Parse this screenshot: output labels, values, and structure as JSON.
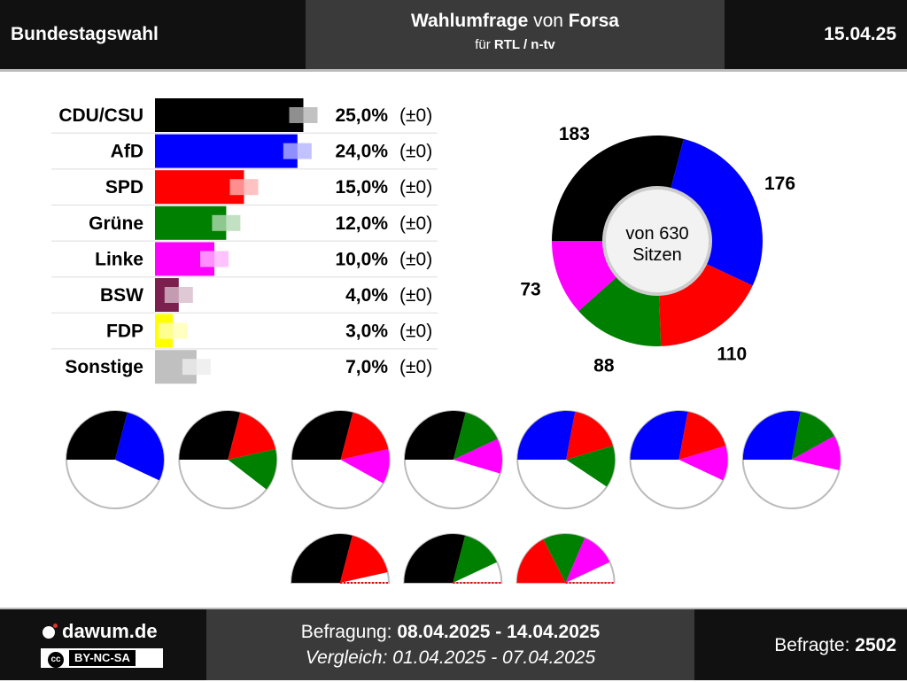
{
  "header": {
    "left": "Bundestagswahl",
    "title_bold1": "Wahlumfrage",
    "title_mid": " von ",
    "title_bold2": "Forsa",
    "sub_pre": "für ",
    "sub_bold": "RTL / n-tv",
    "date": "15.04.25"
  },
  "footer": {
    "logo": "dawum.de",
    "license": "BY-NC-SA",
    "cc": "cc",
    "survey_label": "Befragung: ",
    "survey_dates": "08.04.2025 - 14.04.2025",
    "compare_text": "Vergleich: 01.04.2025 - 07.04.2025",
    "respondents_label": "Befragte: ",
    "respondents_value": "2502"
  },
  "chart_data": [
    {
      "type": "bar",
      "orientation": "horizontal",
      "categories": [
        "CDU/CSU",
        "AfD",
        "SPD",
        "Grüne",
        "Linke",
        "BSW",
        "FDP",
        "Sonstige"
      ],
      "values": [
        25.0,
        24.0,
        15.0,
        12.0,
        10.0,
        4.0,
        3.0,
        7.0
      ],
      "value_labels": [
        "25,0%",
        "24,0%",
        "15,0%",
        "12,0%",
        "10,0%",
        "4,0%",
        "3,0%",
        "7,0%"
      ],
      "change_labels": [
        "(±0)",
        "(±0)",
        "(±0)",
        "(±0)",
        "(±0)",
        "(±0)",
        "(±0)",
        "(±0)"
      ],
      "previous_values": [
        25.0,
        24.0,
        15.0,
        12.0,
        10.0,
        4.0,
        3.0,
        7.0
      ],
      "colors": [
        "#000000",
        "#0000ff",
        "#ff0000",
        "#008000",
        "#ff00ff",
        "#7a1f4e",
        "#ffff00",
        "#c0c0c0"
      ]
    },
    {
      "type": "pie",
      "subtype": "donut-seat-distribution",
      "center_text": [
        "von 630",
        "Sitzen"
      ],
      "slices": [
        {
          "party": "CDU/CSU",
          "seats": 183,
          "color": "#000000"
        },
        {
          "party": "AfD",
          "seats": 176,
          "color": "#0000ff"
        },
        {
          "party": "SPD",
          "seats": 110,
          "color": "#ff0000"
        },
        {
          "party": "Grüne",
          "seats": 88,
          "color": "#008000"
        },
        {
          "party": "Linke",
          "seats": 73,
          "color": "#ff00ff"
        }
      ]
    },
    {
      "type": "pie",
      "subtype": "coalitions",
      "total": 630,
      "coalitions": [
        {
          "parties": [
            "CDU/CSU",
            "AfD"
          ],
          "seats": [
            183,
            176
          ],
          "majority": true
        },
        {
          "parties": [
            "CDU/CSU",
            "SPD",
            "Grüne"
          ],
          "seats": [
            183,
            110,
            88
          ],
          "majority": true
        },
        {
          "parties": [
            "CDU/CSU",
            "SPD",
            "Linke"
          ],
          "seats": [
            183,
            110,
            73
          ],
          "majority": true
        },
        {
          "parties": [
            "CDU/CSU",
            "Grüne",
            "Linke"
          ],
          "seats": [
            183,
            88,
            73
          ],
          "majority": true
        },
        {
          "parties": [
            "AfD",
            "SPD",
            "Grüne"
          ],
          "seats": [
            176,
            110,
            88
          ],
          "majority": true
        },
        {
          "parties": [
            "AfD",
            "SPD",
            "Linke"
          ],
          "seats": [
            176,
            110,
            73
          ],
          "majority": true
        },
        {
          "parties": [
            "AfD",
            "Grüne",
            "Linke"
          ],
          "seats": [
            176,
            88,
            73
          ],
          "majority": true
        },
        {
          "parties": [
            "CDU/CSU",
            "SPD"
          ],
          "seats": [
            183,
            110
          ],
          "majority": false
        },
        {
          "parties": [
            "CDU/CSU",
            "Grüne"
          ],
          "seats": [
            183,
            88
          ],
          "majority": false
        },
        {
          "parties": [
            "SPD",
            "Grüne",
            "Linke"
          ],
          "seats": [
            110,
            88,
            73
          ],
          "majority": false
        }
      ]
    }
  ]
}
